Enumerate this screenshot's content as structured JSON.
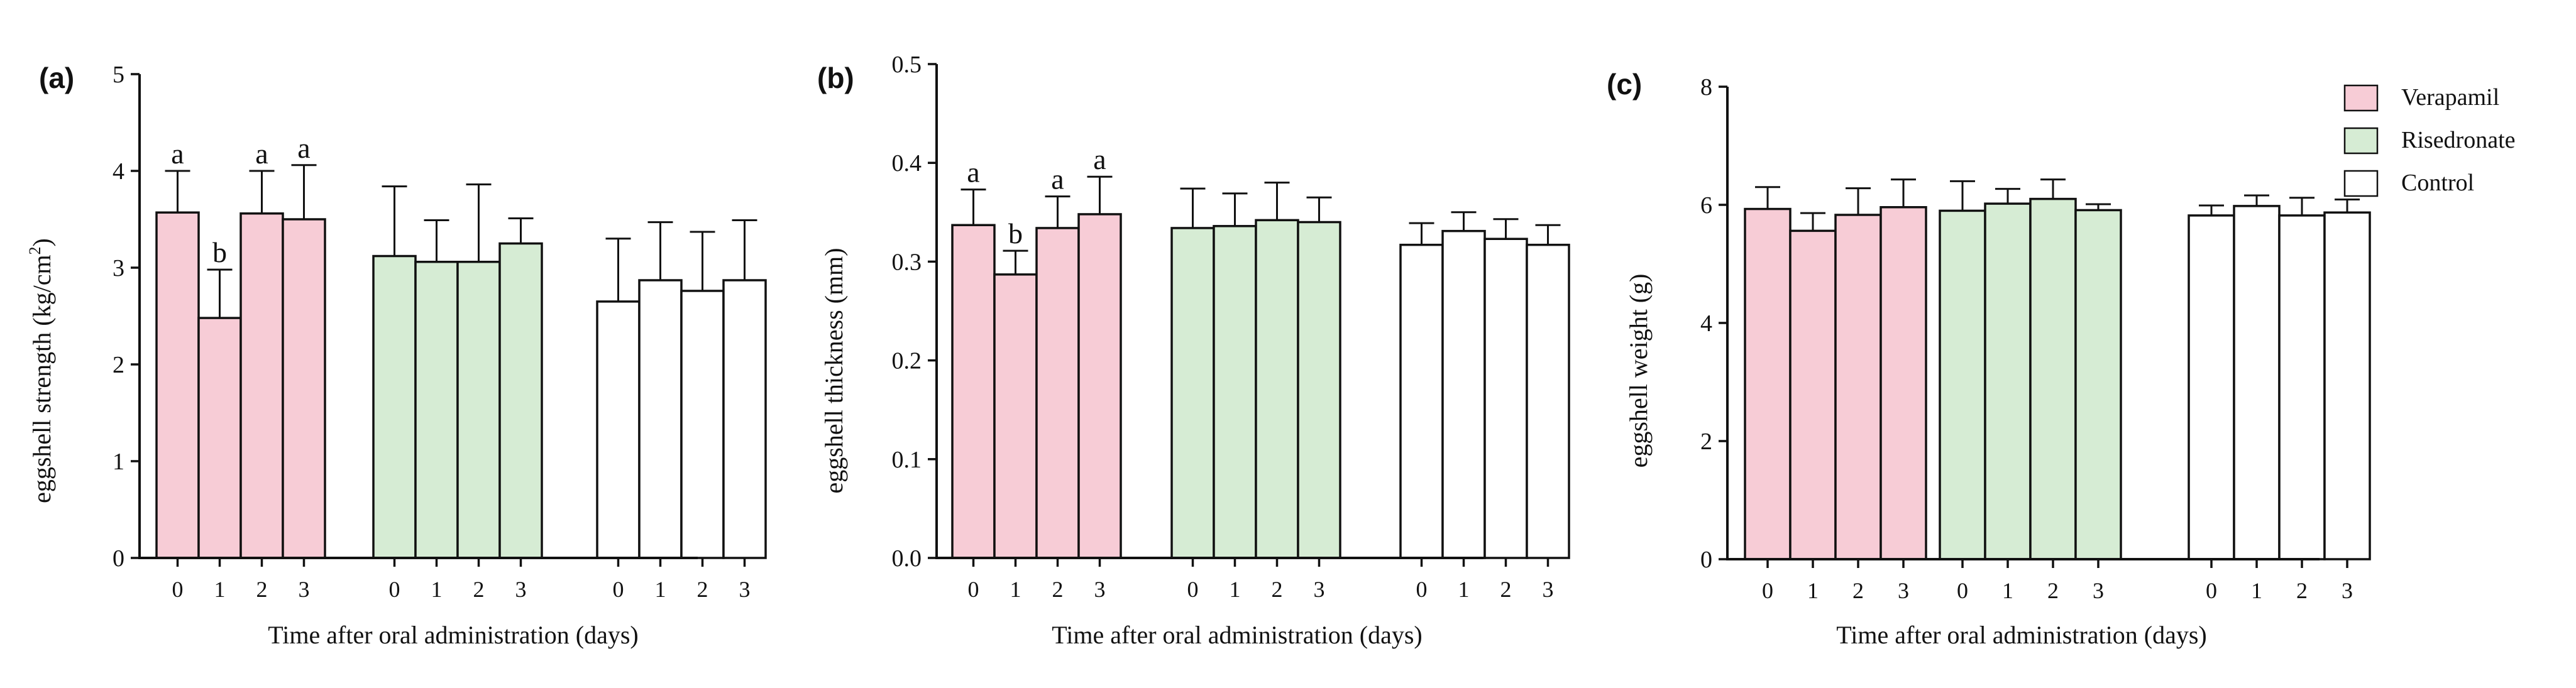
{
  "legend": {
    "entries": [
      {
        "name": "Verapamil",
        "color": "#f7ccd6"
      },
      {
        "name": "Risedronate",
        "color": "#d6ecd4"
      },
      {
        "name": "Control",
        "color": "#ffffff"
      }
    ]
  },
  "chart_data": [
    {
      "type": "bar",
      "panel": "(a)",
      "ylabel": "eggshell strength (kg/cm",
      "ylabel_sup": "2",
      "ylabel_end": ")",
      "xlabel": "Time after oral administration (days)",
      "ylim": [
        0,
        5
      ],
      "yticks": [
        "0",
        "1",
        "2",
        "3",
        "4",
        "5"
      ],
      "ytick_values": [
        0,
        1,
        2,
        3,
        4,
        5
      ],
      "categories": [
        "0",
        "1",
        "2",
        "3"
      ],
      "series": [
        {
          "name": "Verapamil",
          "color": "#f7ccd6",
          "values": [
            3.57,
            2.48,
            3.56,
            3.5
          ],
          "errors": [
            0.43,
            0.5,
            0.44,
            0.56
          ],
          "labels": [
            "a",
            "b",
            "a",
            "a"
          ]
        },
        {
          "name": "Risedronate",
          "color": "#d6ecd4",
          "values": [
            3.12,
            3.06,
            3.06,
            3.25
          ],
          "errors": [
            0.72,
            0.43,
            0.8,
            0.26
          ]
        },
        {
          "name": "Control",
          "color": "#ffffff",
          "values": [
            2.65,
            2.87,
            2.76,
            2.87
          ],
          "errors": [
            0.65,
            0.6,
            0.61,
            0.62
          ]
        }
      ]
    },
    {
      "type": "bar",
      "panel": "(b)",
      "ylabel": "eggshell thickness (mm)",
      "ylabel_sup": "",
      "ylabel_end": "",
      "xlabel": "Time after oral administration (days)",
      "ylim": [
        0,
        0.5
      ],
      "yticks": [
        "0.0",
        "0.1",
        "0.2",
        "0.3",
        "0.4",
        "0.5"
      ],
      "ytick_values": [
        0,
        0.1,
        0.2,
        0.3,
        0.4,
        0.5
      ],
      "categories": [
        "0",
        "1",
        "2",
        "3"
      ],
      "series": [
        {
          "name": "Verapamil",
          "color": "#f7ccd6",
          "values": [
            0.337,
            0.287,
            0.334,
            0.348
          ],
          "errors": [
            0.036,
            0.024,
            0.032,
            0.038
          ],
          "labels": [
            "a",
            "b",
            "a",
            "a"
          ]
        },
        {
          "name": "Risedronate",
          "color": "#d6ecd4",
          "values": [
            0.334,
            0.336,
            0.342,
            0.34
          ],
          "errors": [
            0.04,
            0.033,
            0.038,
            0.025
          ]
        },
        {
          "name": "Control",
          "color": "#ffffff",
          "values": [
            0.317,
            0.331,
            0.323,
            0.317
          ],
          "errors": [
            0.022,
            0.019,
            0.02,
            0.02
          ]
        }
      ]
    },
    {
      "type": "bar",
      "panel": "(c)",
      "ylabel": "eggshell weight (g)",
      "ylabel_sup": "",
      "ylabel_end": "",
      "xlabel": "Time after oral administration (days)",
      "ylim": [
        0,
        8
      ],
      "yticks": [
        "0",
        "2",
        "4",
        "6",
        "8"
      ],
      "ytick_values": [
        0,
        2,
        4,
        6,
        8
      ],
      "categories": [
        "0",
        "1",
        "2",
        "3"
      ],
      "series": [
        {
          "name": "Verapamil",
          "color": "#f7ccd6",
          "values": [
            5.93,
            5.56,
            5.83,
            5.96
          ],
          "errors": [
            0.37,
            0.3,
            0.45,
            0.47
          ]
        },
        {
          "name": "Risedronate",
          "color": "#d6ecd4",
          "values": [
            5.9,
            6.02,
            6.1,
            5.91
          ],
          "errors": [
            0.5,
            0.25,
            0.33,
            0.1
          ]
        },
        {
          "name": "Control",
          "color": "#ffffff",
          "values": [
            5.82,
            5.98,
            5.82,
            5.87
          ],
          "errors": [
            0.17,
            0.18,
            0.3,
            0.22
          ]
        }
      ]
    }
  ]
}
